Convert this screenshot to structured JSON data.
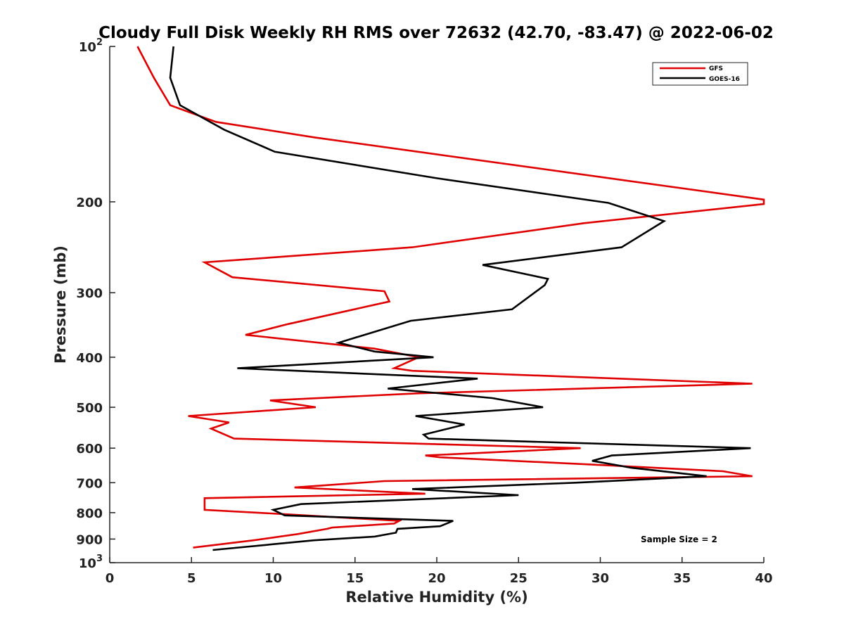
{
  "chart_data": {
    "type": "line",
    "title": "Cloudy Full Disk Weekly RH RMS over 72632 (42.70, -83.47) @ 2022-06-02",
    "xlabel": "Relative Humidity (%)",
    "ylabel": "Pressure (mb)",
    "xlim": [
      0,
      40
    ],
    "ylim": [
      100,
      1000
    ],
    "y_scale": "log",
    "y_reversed": true,
    "grid": false,
    "legend_position": "top-right",
    "x_ticks": [
      "0",
      "5",
      "10",
      "15",
      "20",
      "25",
      "30",
      "35",
      "40"
    ],
    "y_ticks": [
      {
        "value": 100,
        "base": "10",
        "exp": "2"
      },
      {
        "value": 200,
        "label": "200"
      },
      {
        "value": 300,
        "label": "300"
      },
      {
        "value": 400,
        "label": "400"
      },
      {
        "value": 500,
        "label": "500"
      },
      {
        "value": 600,
        "label": "600"
      },
      {
        "value": 700,
        "label": "700"
      },
      {
        "value": 800,
        "label": "800"
      },
      {
        "value": 900,
        "label": "900"
      },
      {
        "value": 1000,
        "base": "10",
        "exp": "3"
      }
    ],
    "annotation": "Sample Size = 2",
    "series": [
      {
        "name": "GFS",
        "color": "#e00000",
        "x": [
          1.7,
          2.7,
          3.7,
          6.5,
          12.5,
          40,
          40,
          29,
          18.5,
          5.8,
          7.5,
          16.8,
          17.1,
          10.9,
          8.3,
          16.2,
          18.9,
          17.4,
          18.5,
          39.3,
          18.8,
          9.8,
          12.6,
          4.8,
          7.3,
          6.2,
          7.6,
          28.8,
          19.3,
          20.2,
          29.2,
          37.5,
          39.3,
          16.8,
          11.3,
          19.3,
          5.8,
          5.8,
          10.6,
          17.7,
          17.4,
          13.6,
          13.3,
          11.5,
          8.8,
          5.1
        ],
        "y": [
          100,
          115,
          130,
          140,
          150,
          198,
          202,
          220,
          245,
          262,
          280,
          298,
          312,
          345,
          362,
          385,
          400,
          420,
          425,
          450,
          470,
          485,
          500,
          520,
          535,
          550,
          575,
          600,
          620,
          625,
          645,
          665,
          680,
          695,
          715,
          735,
          750,
          790,
          805,
          830,
          840,
          855,
          860,
          880,
          905,
          935
        ]
      },
      {
        "name": "GOES-16",
        "color": "#000000",
        "x": [
          3.9,
          3.7,
          4.3,
          7,
          10.1,
          20,
          30.5,
          33.9,
          31.3,
          22.8,
          26.8,
          26.6,
          24.6,
          18.4,
          14,
          16.2,
          19.8,
          7.8,
          22.5,
          17,
          23.4,
          26.5,
          18.7,
          21.7,
          19.2,
          19.5,
          39.2,
          30.7,
          29.5,
          31.9,
          36.5,
          28.5,
          18.5,
          25,
          11.7,
          10,
          10.7,
          21,
          20.2,
          17.6,
          17.5,
          16.2,
          12.5,
          6.3
        ],
        "y": [
          100,
          115,
          130,
          145,
          160,
          180,
          201,
          218,
          245,
          265,
          282,
          290,
          323,
          340,
          375,
          390,
          400,
          420,
          440,
          460,
          480,
          500,
          520,
          540,
          565,
          575,
          600,
          620,
          635,
          655,
          680,
          700,
          720,
          740,
          770,
          790,
          810,
          830,
          850,
          860,
          875,
          890,
          905,
          945
        ]
      }
    ]
  }
}
